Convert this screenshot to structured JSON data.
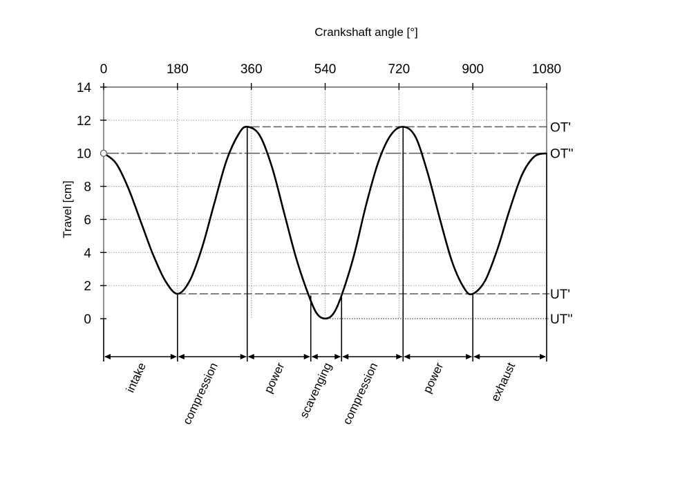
{
  "chart_data": {
    "type": "line",
    "title": "",
    "xlabel": "Crankshaft angle [°]",
    "ylabel": "Travel [cm]",
    "xlim": [
      0,
      1080
    ],
    "ylim": [
      0,
      14
    ],
    "x_ticks": [
      "0",
      "180",
      "360",
      "540",
      "720",
      "900",
      "1080"
    ],
    "y_ticks": [
      "0",
      "2",
      "4",
      "6",
      "8",
      "10",
      "12",
      "14"
    ],
    "grid": true,
    "series": [
      {
        "values": [
          [
            0,
            10
          ],
          [
            30,
            9.4
          ],
          [
            60,
            7.9
          ],
          [
            90,
            5.9
          ],
          [
            120,
            3.9
          ],
          [
            150,
            2.3
          ],
          [
            180,
            1.5
          ],
          [
            210,
            2.3
          ],
          [
            240,
            4.3
          ],
          [
            270,
            7.0
          ],
          [
            300,
            9.6
          ],
          [
            330,
            11.2
          ],
          [
            350,
            11.6
          ],
          [
            380,
            11.1
          ],
          [
            410,
            9.2
          ],
          [
            440,
            6.4
          ],
          [
            470,
            3.6
          ],
          [
            500,
            1.4
          ],
          [
            520,
            0.3
          ],
          [
            540,
            0
          ],
          [
            560,
            0.3
          ],
          [
            580,
            1.4
          ],
          [
            610,
            3.8
          ],
          [
            640,
            6.9
          ],
          [
            670,
            9.5
          ],
          [
            700,
            11.1
          ],
          [
            730,
            11.6
          ],
          [
            760,
            11.0
          ],
          [
            790,
            8.8
          ],
          [
            820,
            6.0
          ],
          [
            850,
            3.4
          ],
          [
            880,
            1.8
          ],
          [
            900,
            1.5
          ],
          [
            930,
            2.3
          ],
          [
            960,
            4.2
          ],
          [
            990,
            6.6
          ],
          [
            1020,
            8.7
          ],
          [
            1050,
            9.8
          ],
          [
            1080,
            10
          ]
        ]
      }
    ],
    "reference_lines": [
      {
        "label": "OT'",
        "y": 11.6,
        "x_start": 360
      },
      {
        "label": "OT''",
        "y": 10,
        "x_start": 0
      },
      {
        "label": "UT'",
        "y": 1.5,
        "x_start": 180
      },
      {
        "label": "UT''",
        "y": 0,
        "x_start": 540
      }
    ],
    "phase_boundaries": [
      0,
      180,
      350,
      505,
      580,
      730,
      900,
      1080
    ],
    "phases": [
      "intake",
      "compression",
      "power",
      "scavenging",
      "compression",
      "power",
      "exhaust"
    ]
  }
}
